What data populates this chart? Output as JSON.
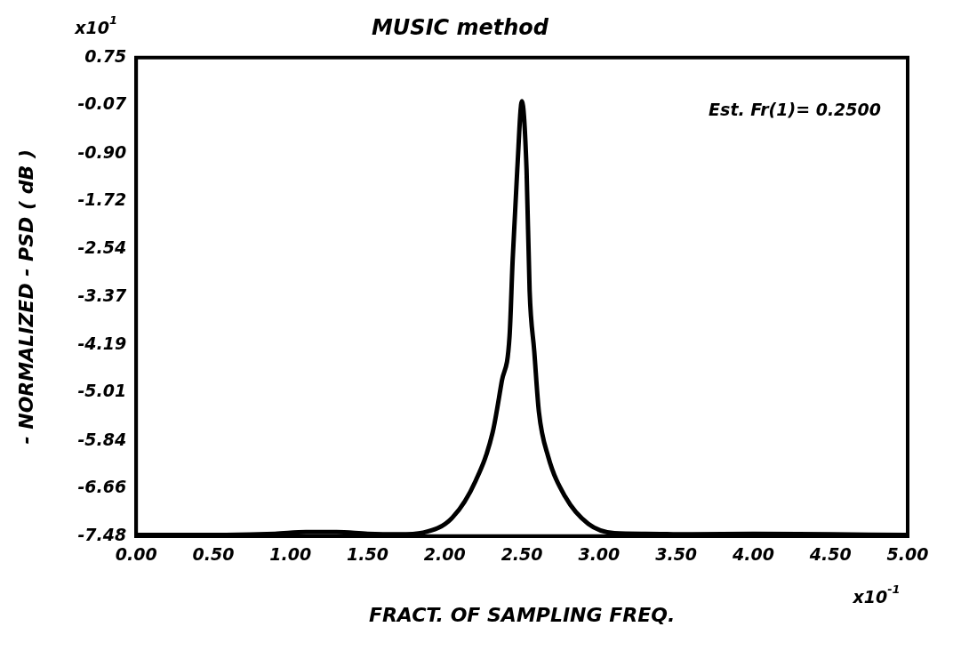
{
  "chart_data": {
    "type": "line",
    "title": "MUSIC method",
    "xlabel": "FRACT. OF SAMPLING FREQ.",
    "ylabel": "- NORMALIZED - PSD ( dB )",
    "annotations": [
      "Est. Fr(1)= 0.2500",
      "x10$^{1}$",
      "x10$^{-1}$"
    ],
    "series": [
      {
        "color": "#000000",
        "x": [
          0,
          0.5,
          0.9,
          1.1,
          1.3,
          1.5,
          1.7,
          1.86,
          2.05,
          2.2,
          2.31,
          2.37,
          2.42,
          2.44,
          2.47,
          2.5,
          2.53,
          2.55,
          2.58,
          2.61,
          2.67,
          2.78,
          2.93,
          3.1,
          3.3,
          3.6,
          4.0,
          4.5,
          5.0
        ],
        "values": [
          -7.46,
          -7.46,
          -7.44,
          -7.41,
          -7.41,
          -7.44,
          -7.45,
          -7.42,
          -7.16,
          -6.53,
          -5.7,
          -4.81,
          -4.04,
          -2.73,
          -1.17,
          0.0,
          -1.17,
          -3.26,
          -4.3,
          -5.34,
          -6.11,
          -6.8,
          -7.27,
          -7.43,
          -7.44,
          -7.45,
          -7.44,
          -7.45,
          -7.46
        ]
      }
    ],
    "xlim": [
      0,
      5
    ],
    "xticks": [
      {
        "value": 0,
        "label": "0.00"
      },
      {
        "value": 0.5,
        "label": "0.50"
      },
      {
        "value": 1,
        "label": "1.00"
      },
      {
        "value": 1.5,
        "label": "1.50"
      },
      {
        "value": 2,
        "label": "2.00"
      },
      {
        "value": 2.5,
        "label": "2.50"
      },
      {
        "value": 3,
        "label": "3.00"
      },
      {
        "value": 3.5,
        "label": "3.50"
      },
      {
        "value": 4,
        "label": "4.00"
      },
      {
        "value": 4.5,
        "label": "4.50"
      },
      {
        "value": 5,
        "label": "5.00"
      }
    ],
    "ylim": [
      -7.48,
      0.75
    ],
    "yticks": [
      0.75,
      -0.07,
      {
        "value": -0.9,
        "label": "-0.90"
      },
      -1.72,
      -2.54,
      -3.37,
      -4.19,
      -5.01,
      -5.84,
      -6.66,
      -7.48
    ],
    "grid": false,
    "legend": false,
    "marker": "none",
    "line_style": "solid"
  }
}
